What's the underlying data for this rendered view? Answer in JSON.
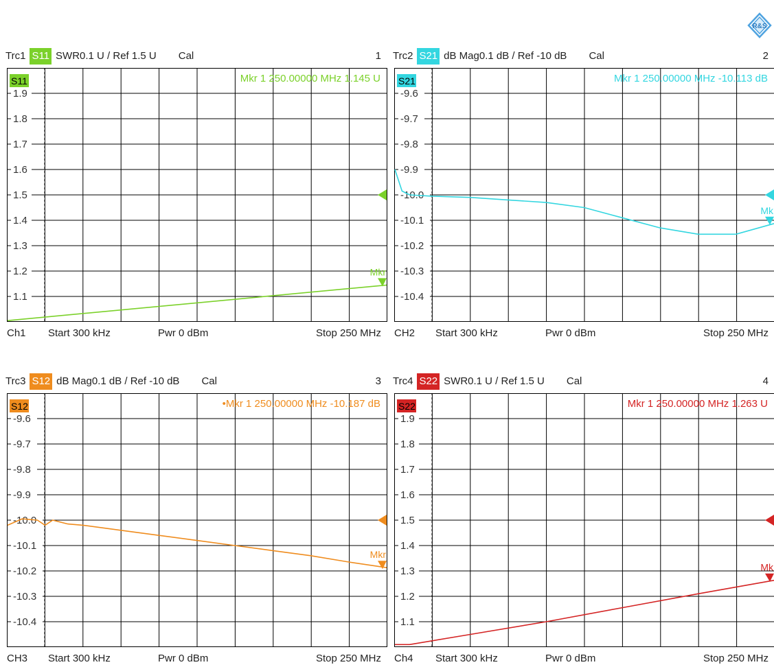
{
  "chart_data": [
    {
      "type": "line",
      "trace": "Trc1",
      "param": "S11",
      "format": "SWR",
      "scale": "0.1 U /",
      "ref": "Ref 1.5 U",
      "cal": "Cal",
      "index": "1",
      "color": "#7bd12a",
      "ylim": [
        1.0,
        2.0
      ],
      "yticks": [
        "1.9",
        "1.8",
        "1.7",
        "1.6",
        "1.5",
        "1.4",
        "1.3",
        "1.2",
        "1.1"
      ],
      "x": [
        0.3,
        250
      ],
      "xunit": "MHz",
      "values": [
        1.005,
        1.145
      ],
      "marker": {
        "label": "Mkr 1",
        "freq": "250.00000 MHz",
        "value": "1.145 U",
        "tag": "Mkr"
      },
      "ref_value": 1.5,
      "footer": {
        "ch": "Ch1",
        "start": "Start  300 kHz",
        "pwr": "Pwr  0 dBm",
        "stop": "Stop  250 MHz"
      }
    },
    {
      "type": "line",
      "trace": "Trc2",
      "param": "S21",
      "format": "dB Mag",
      "scale": "0.1 dB /",
      "ref": "Ref -10 dB",
      "cal": "Cal",
      "index": "2",
      "color": "#33d6e0",
      "ylim": [
        -10.5,
        -9.5
      ],
      "yticks": [
        "-9.6",
        "-9.7",
        "-9.8",
        "-9.9",
        "-10.0",
        "-10.1",
        "-10.2",
        "-10.3",
        "-10.4"
      ],
      "x": [
        0.3,
        5,
        10,
        25,
        50,
        75,
        100,
        125,
        150,
        175,
        200,
        225,
        250
      ],
      "xunit": "MHz",
      "values": [
        -9.9,
        -9.985,
        -10.0,
        -10.005,
        -10.01,
        -10.02,
        -10.03,
        -10.05,
        -10.09,
        -10.13,
        -10.155,
        -10.155,
        -10.113
      ],
      "marker": {
        "label": "Mkr 1",
        "freq": "250.00000 MHz",
        "value": "-10.113 dB",
        "tag": "Mk"
      },
      "ref_value": -10.0,
      "footer": {
        "ch": "CH2",
        "start": "Start  300 kHz",
        "pwr": "Pwr  0 dBm",
        "stop": "Stop  250 MHz"
      }
    },
    {
      "type": "line",
      "trace": "Trc3",
      "param": "S12",
      "format": "dB Mag",
      "scale": "0.1 dB /",
      "ref": "Ref -10 dB",
      "cal": "Cal",
      "index": "3",
      "color": "#ef8c1e",
      "ylim": [
        -10.5,
        -9.5
      ],
      "yticks": [
        "-9.6",
        "-9.7",
        "-9.8",
        "-9.9",
        "-10.0",
        "-10.1",
        "-10.2",
        "-10.3",
        "-10.4"
      ],
      "x": [
        0.3,
        10,
        20,
        25,
        30,
        40,
        50,
        75,
        100,
        125,
        150,
        175,
        200,
        225,
        250
      ],
      "xunit": "MHz",
      "values": [
        -10.02,
        -9.995,
        -10.0,
        -10.02,
        -10.0,
        -10.015,
        -10.02,
        -10.04,
        -10.06,
        -10.08,
        -10.1,
        -10.12,
        -10.14,
        -10.165,
        -10.187
      ],
      "marker": {
        "label": "•Mkr 1",
        "freq": "250.00000 MHz",
        "value": "-10.187 dB",
        "tag": "Mkr"
      },
      "ref_value": -10.0,
      "footer": {
        "ch": "CH3",
        "start": "Start  300 kHz",
        "pwr": "Pwr  0 dBm",
        "stop": "Stop  250 MHz"
      }
    },
    {
      "type": "line",
      "trace": "Trc4",
      "param": "S22",
      "format": "SWR",
      "scale": "0.1 U /",
      "ref": "Ref 1.5 U",
      "cal": "Cal",
      "index": "4",
      "color": "#d42424",
      "ylim": [
        1.0,
        2.0
      ],
      "yticks": [
        "1.9",
        "1.8",
        "1.7",
        "1.6",
        "1.5",
        "1.4",
        "1.3",
        "1.2",
        "1.1"
      ],
      "x": [
        0.3,
        10,
        50,
        100,
        150,
        200,
        250
      ],
      "xunit": "MHz",
      "values": [
        1.01,
        1.01,
        1.05,
        1.1,
        1.155,
        1.21,
        1.263
      ],
      "marker": {
        "label": "Mkr 1",
        "freq": "250.00000 MHz",
        "value": "1.263 U",
        "tag": "Mk"
      },
      "ref_value": 1.5,
      "footer": {
        "ch": "Ch4",
        "start": "Start  300 kHz",
        "pwr": "Pwr  0 dBm",
        "stop": "Stop  250 MHz"
      }
    }
  ],
  "logo": {
    "text": "R&S",
    "color": "#4fa3e0"
  }
}
